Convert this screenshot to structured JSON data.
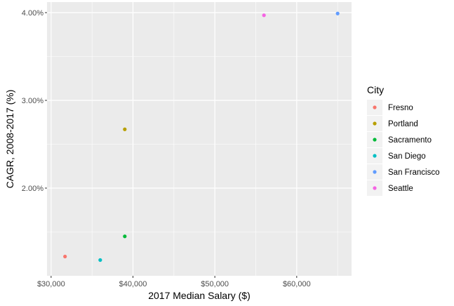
{
  "chart_data": {
    "type": "scatter",
    "xlabel": "2017 Median Salary ($)",
    "ylabel": "CAGR, 2008-2017 (%)",
    "xlim": [
      29500,
      66700
    ],
    "ylim": [
      1.0,
      4.12
    ],
    "x_ticks": [
      {
        "value": 30000,
        "label": "$30,000"
      },
      {
        "value": 40000,
        "label": "$40,000"
      },
      {
        "value": 50000,
        "label": "$50,000"
      },
      {
        "value": 60000,
        "label": "$60,000"
      }
    ],
    "y_ticks": [
      {
        "value": 2.0,
        "label": "2.00%"
      },
      {
        "value": 3.0,
        "label": "3.00%"
      },
      {
        "value": 4.0,
        "label": "4.00%"
      }
    ],
    "grid": true,
    "legend": {
      "title": "City",
      "placement": "right",
      "entries": [
        {
          "label": "Fresno",
          "color": "#F8766D"
        },
        {
          "label": "Portland",
          "color": "#B79F00"
        },
        {
          "label": "Sacramento",
          "color": "#00BA38"
        },
        {
          "label": "San Diego",
          "color": "#00BFC4"
        },
        {
          "label": "San Francisco",
          "color": "#619CFF"
        },
        {
          "label": "Seattle",
          "color": "#F564E3"
        }
      ]
    },
    "points": [
      {
        "city": "Fresno",
        "x": 31700,
        "y": 1.22,
        "color": "#F8766D"
      },
      {
        "city": "Portland",
        "x": 39000,
        "y": 2.67,
        "color": "#B79F00"
      },
      {
        "city": "Sacramento",
        "x": 39000,
        "y": 1.45,
        "color": "#00BA38"
      },
      {
        "city": "San Diego",
        "x": 36000,
        "y": 1.18,
        "color": "#00BFC4"
      },
      {
        "city": "San Francisco",
        "x": 65000,
        "y": 3.99,
        "color": "#619CFF"
      },
      {
        "city": "Seattle",
        "x": 56000,
        "y": 3.97,
        "color": "#F564E3"
      }
    ],
    "colors": {
      "panel_background": "#EBEBEB",
      "grid_major": "#FFFFFF",
      "legend_key_background": "#F2F2F2"
    }
  }
}
